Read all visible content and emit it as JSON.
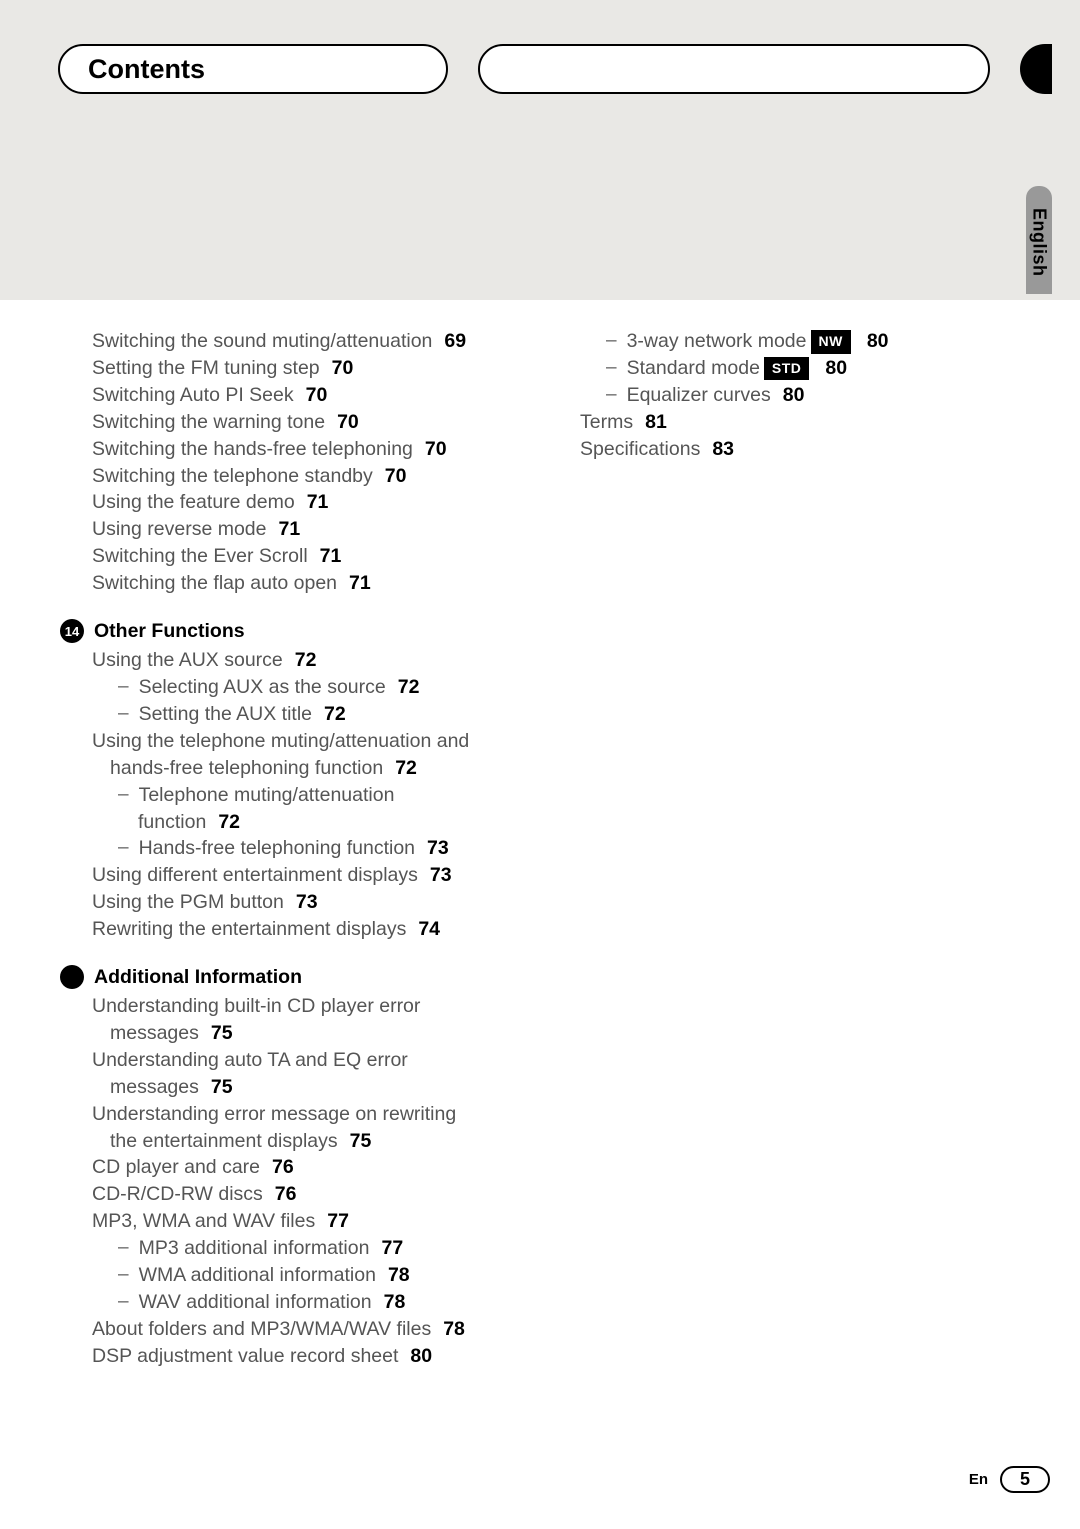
{
  "header": {
    "title": "Contents",
    "language_tab": "English"
  },
  "col1": {
    "initial_entries": [
      {
        "text": "Switching the sound muting/attenuation",
        "page": "69"
      },
      {
        "text": "Setting the FM tuning step",
        "page": "70"
      },
      {
        "text": "Switching Auto PI Seek",
        "page": "70"
      },
      {
        "text": "Switching the warning tone",
        "page": "70"
      },
      {
        "text": "Switching the hands-free telephoning",
        "page": "70"
      },
      {
        "text": "Switching the telephone standby",
        "page": "70"
      },
      {
        "text": "Using the feature demo",
        "page": "71"
      },
      {
        "text": "Using reverse mode",
        "page": "71"
      },
      {
        "text": "Switching the Ever Scroll",
        "page": "71"
      },
      {
        "text": "Switching the flap auto open",
        "page": "71"
      }
    ],
    "section_14": {
      "num": "14",
      "title": "Other Functions",
      "aux_source": {
        "text": "Using the AUX source",
        "page": "72"
      },
      "aux_select": {
        "text": "Selecting AUX as the source",
        "page": "72"
      },
      "aux_title": {
        "text": "Setting the AUX title",
        "page": "72"
      },
      "tel_muting_line1": "Using the telephone muting/attenuation and",
      "tel_muting_line2": "hands-free telephoning function",
      "tel_muting_page": "72",
      "tel_func_line1": "Telephone muting/attenuation",
      "tel_func_line2": "function",
      "tel_func_page": "72",
      "handsfree": {
        "text": "Hands-free telephoning function",
        "page": "73"
      },
      "ent_displays": {
        "text": "Using different entertainment displays",
        "page": "73"
      },
      "pgm": {
        "text": "Using the PGM button",
        "page": "73"
      },
      "rewriting": {
        "text": "Rewriting the entertainment displays",
        "page": "74"
      }
    },
    "section_add": {
      "title": "Additional Information",
      "cd_err_line1": "Understanding built-in CD player error",
      "cd_err_line2": "messages",
      "cd_err_page": "75",
      "ta_eq_line1": "Understanding auto TA and EQ error",
      "ta_eq_line2": "messages",
      "ta_eq_page": "75",
      "rewrite_err_line1": "Understanding error message on rewriting",
      "rewrite_err_line2": "the entertainment displays",
      "rewrite_err_page": "75",
      "cd_care": {
        "text": "CD player and care",
        "page": "76"
      },
      "cdr": {
        "text": "CD-R/CD-RW discs",
        "page": "76"
      },
      "mp3wma": {
        "text": "MP3, WMA and WAV files",
        "page": "77"
      },
      "mp3_info": {
        "text": "MP3 additional information",
        "page": "77"
      },
      "wma_info": {
        "text": "WMA additional information",
        "page": "78"
      },
      "wav_info": {
        "text": "WAV additional information",
        "page": "78"
      },
      "folders": {
        "text": "About folders and MP3/WMA/WAV files",
        "page": "78"
      },
      "dsp": {
        "text": "DSP adjustment value record sheet",
        "page": "80"
      }
    }
  },
  "col2": {
    "nw_mode": {
      "text": "3-way network mode",
      "badge": "NW",
      "page": "80"
    },
    "std_mode": {
      "text": "Standard mode",
      "badge": "STD",
      "page": "80"
    },
    "eq_curves": {
      "text": "Equalizer curves",
      "page": "80"
    },
    "terms": {
      "text": "Terms",
      "page": "81"
    },
    "specs": {
      "text": "Specifications",
      "page": "83"
    }
  },
  "footer": {
    "lang": "En",
    "page": "5"
  }
}
